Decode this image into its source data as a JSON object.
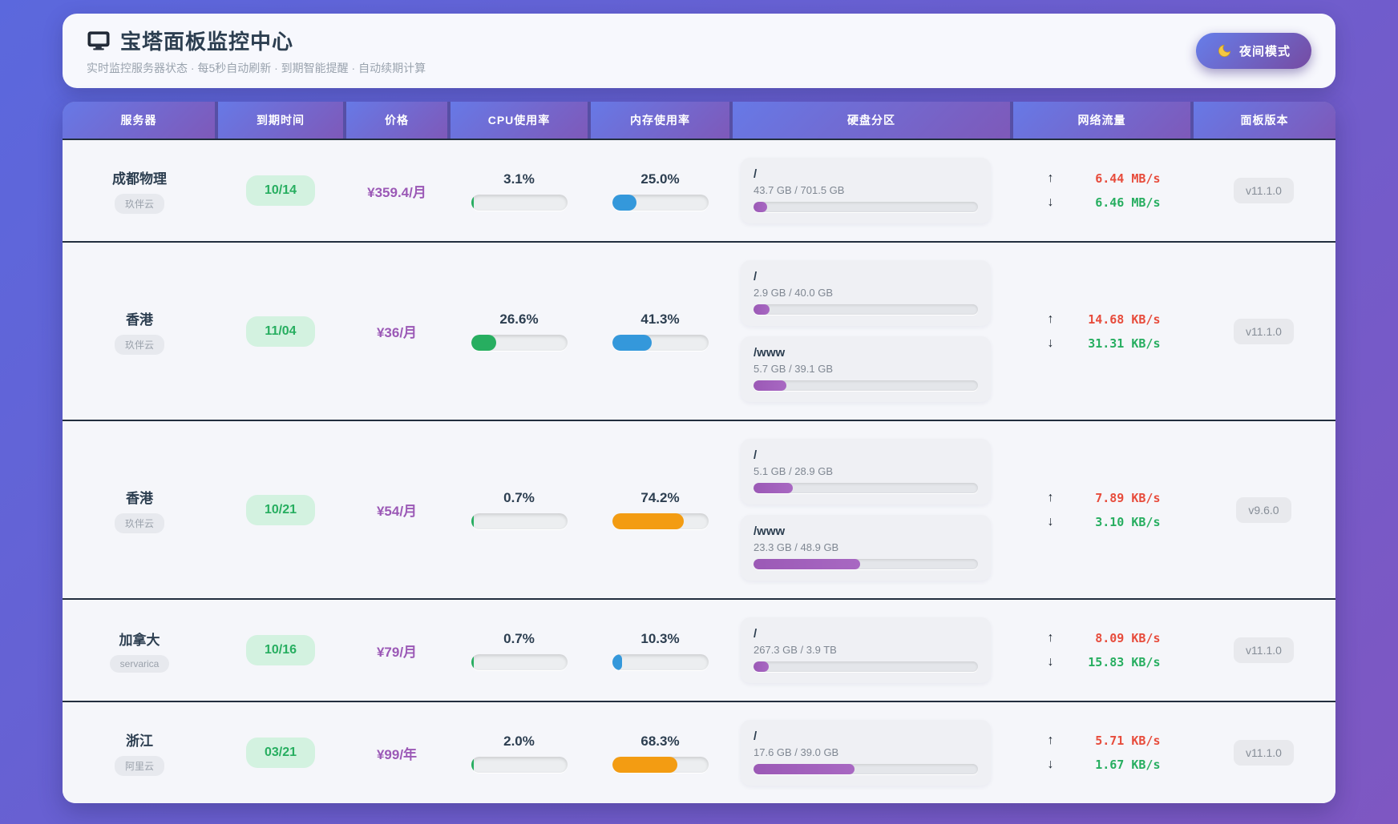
{
  "header": {
    "title": "宝塔面板监控中心",
    "subtitle": "实时监控服务器状态 · 每5秒自动刷新 · 到期智能提醒 · 自动续期计算",
    "night_mode_label": "夜间模式"
  },
  "icons": {
    "up_arrow": "↑",
    "down_arrow": "↓"
  },
  "colors": {
    "cpu_bar": "#27ae60",
    "memory_bar_low": "#3498db",
    "memory_bar_high": "#f39c12",
    "disk_bar": "#9b59b6",
    "net_up": "#e74c3c",
    "net_down": "#27ae60",
    "expiry_badge_bg": "#d3f2e0",
    "expiry_badge_text": "#27ae60",
    "price_text": "#9b59b6",
    "header_gradient_start": "#667eea",
    "header_gradient_end": "#764ba2"
  },
  "table": {
    "columns": [
      "服务器",
      "到期时间",
      "价格",
      "CPU使用率",
      "内存使用率",
      "硬盘分区",
      "网络流量",
      "面板版本"
    ]
  },
  "servers": [
    {
      "name": "成都物理",
      "provider": "玖伴云",
      "expiry": "10/14",
      "price": "¥359.4/月",
      "cpu": {
        "label": "3.1%",
        "pct": 3.1
      },
      "memory": {
        "label": "25.0%",
        "pct": 25.0,
        "level": "low"
      },
      "disks": [
        {
          "mount": "/",
          "usage": "43.7 GB / 701.5 GB",
          "pct": 6.2
        }
      ],
      "network": {
        "up": "6.44 MB/s",
        "down": "6.46 MB/s"
      },
      "version": "v11.1.0"
    },
    {
      "name": "香港",
      "provider": "玖伴云",
      "expiry": "11/04",
      "price": "¥36/月",
      "cpu": {
        "label": "26.6%",
        "pct": 26.6
      },
      "memory": {
        "label": "41.3%",
        "pct": 41.3,
        "level": "low"
      },
      "disks": [
        {
          "mount": "/",
          "usage": "2.9 GB / 40.0 GB",
          "pct": 7.3
        },
        {
          "mount": "/www",
          "usage": "5.7 GB / 39.1 GB",
          "pct": 14.6
        }
      ],
      "network": {
        "up": "14.68 KB/s",
        "down": "31.31 KB/s"
      },
      "version": "v11.1.0"
    },
    {
      "name": "香港",
      "provider": "玖伴云",
      "expiry": "10/21",
      "price": "¥54/月",
      "cpu": {
        "label": "0.7%",
        "pct": 0.7
      },
      "memory": {
        "label": "74.2%",
        "pct": 74.2,
        "level": "high"
      },
      "disks": [
        {
          "mount": "/",
          "usage": "5.1 GB / 28.9 GB",
          "pct": 17.6
        },
        {
          "mount": "/www",
          "usage": "23.3 GB / 48.9 GB",
          "pct": 47.6
        }
      ],
      "network": {
        "up": "7.89 KB/s",
        "down": "3.10 KB/s"
      },
      "version": "v9.6.0"
    },
    {
      "name": "加拿大",
      "provider": "servarica",
      "expiry": "10/16",
      "price": "¥79/月",
      "cpu": {
        "label": "0.7%",
        "pct": 0.7
      },
      "memory": {
        "label": "10.3%",
        "pct": 10.3,
        "level": "low"
      },
      "disks": [
        {
          "mount": "/",
          "usage": "267.3 GB / 3.9 TB",
          "pct": 6.7
        }
      ],
      "network": {
        "up": "8.09 KB/s",
        "down": "15.83 KB/s"
      },
      "version": "v11.1.0"
    },
    {
      "name": "浙江",
      "provider": "阿里云",
      "expiry": "03/21",
      "price": "¥99/年",
      "cpu": {
        "label": "2.0%",
        "pct": 2.0
      },
      "memory": {
        "label": "68.3%",
        "pct": 68.3,
        "level": "high"
      },
      "disks": [
        {
          "mount": "/",
          "usage": "17.6 GB / 39.0 GB",
          "pct": 45.1
        }
      ],
      "network": {
        "up": "5.71 KB/s",
        "down": "1.67 KB/s"
      },
      "version": "v11.1.0"
    }
  ]
}
